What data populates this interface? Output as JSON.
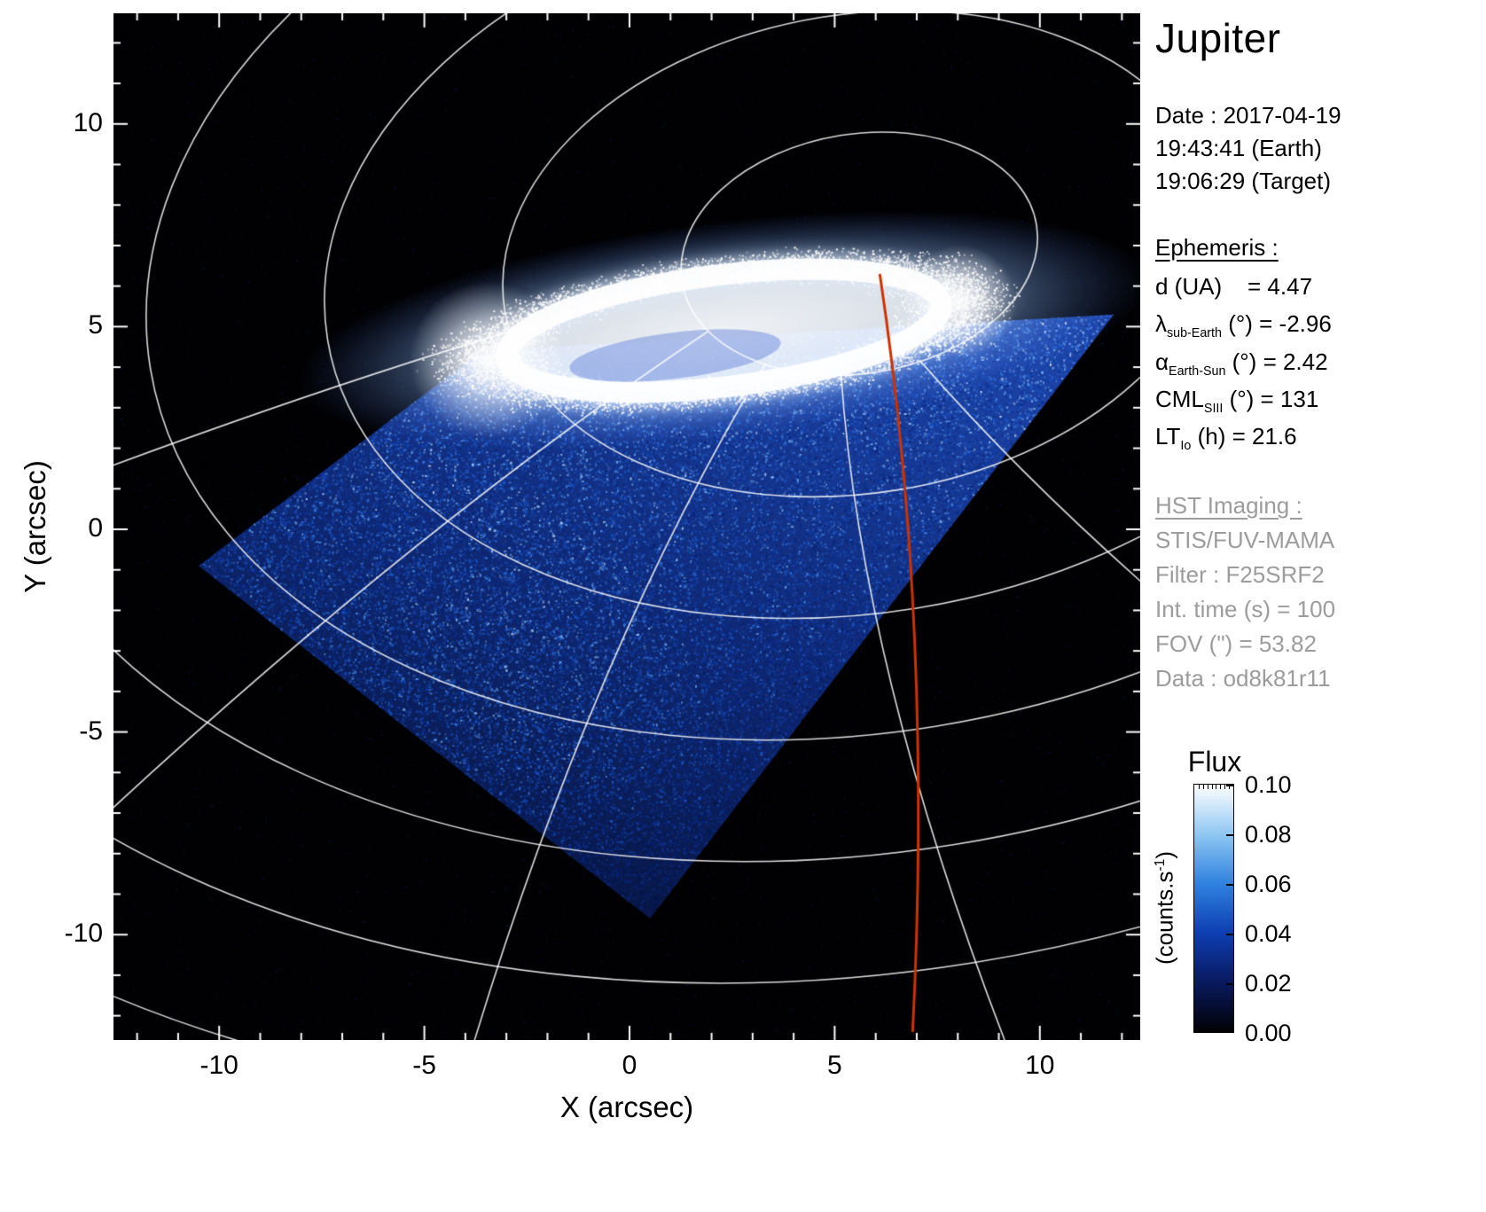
{
  "title": "Jupiter",
  "observation": {
    "date": "Date : 2017-04-19",
    "time_earth": "19:43:41 (Earth)",
    "time_target": "19:06:29 (Target)"
  },
  "ephemeris": {
    "heading": "Ephemeris : ",
    "rows": [
      {
        "main": "d (UA)",
        "sub": "",
        "rest": "    = 4.47"
      },
      {
        "main": "λ",
        "sub": "sub-Earth",
        "rest": " (°) = -2.96"
      },
      {
        "main": "α",
        "sub": "Earth-Sun",
        "rest": " (°) = 2.42"
      },
      {
        "main": "CML",
        "sub": "SIII",
        "rest": " (°) = 131"
      },
      {
        "main": "LT",
        "sub": "Io",
        "rest": " (h) = 21.6"
      }
    ]
  },
  "hst": {
    "heading": "HST Imaging : ",
    "lines": [
      "STIS/FUV-MAMA",
      "Filter : F25SRF2",
      "Int. time (s) = 100",
      "FOV (\") = 53.82",
      "Data : od8k81r11"
    ]
  },
  "colorbar": {
    "title": "Flux",
    "unit_pre": "(counts.s",
    "unit_sup": "-1",
    "unit_post": ")",
    "tick_labels": [
      "0.10",
      "0.08",
      "0.06",
      "0.04",
      "0.02",
      "0.00"
    ],
    "colors": [
      "#010104",
      "#09195e",
      "#0d3eb2",
      "#2f82e0",
      "#8fc7f2",
      "#ffffff"
    ]
  },
  "chart_data": {
    "type": "heatmap",
    "title": "Jupiter FUV auroral image (HST/STIS)",
    "xlabel": "X (arcsec)",
    "ylabel": "Y (arcsec)",
    "xlim": [
      -12.6,
      12.5
    ],
    "ylim": [
      -12.6,
      12.7
    ],
    "xticks": [
      -10,
      -5,
      0,
      5,
      10
    ],
    "yticks": [
      10,
      5,
      0,
      -5,
      -10
    ],
    "grid": "planetary latitude-longitude grid overlaid in white",
    "colorbar_label": "Flux (counts.s-1)",
    "colorbar_range": [
      0.0,
      0.1
    ],
    "colorbar_ticks": [
      0.0,
      0.02,
      0.04,
      0.06,
      0.08,
      0.1
    ],
    "features": {
      "background": "black sky, sparse faint blue noise",
      "auroral_oval": {
        "center_arcsec": [
          2.3,
          4.9
        ],
        "rx_arcsec": 5.8,
        "ry_arcsec": 1.5,
        "tilt_deg": -7,
        "peak_flux": 0.1
      },
      "detector_fov_arcsec": [
        [
          -3.6,
          4.4
        ],
        [
          11.8,
          5.3
        ],
        [
          0.5,
          -9.6
        ],
        [
          -10.5,
          -0.9
        ]
      ],
      "disk_flux_range": [
        0.01,
        0.06
      ],
      "red_meridian": {
        "from": [
          6.1,
          6.3
        ],
        "ctrl": [
          7.4,
          -2.5
        ],
        "to": [
          6.9,
          -12.4
        ],
        "color": "#cc3300"
      },
      "grid_pole_arcsec": [
        5.6,
        6.8
      ]
    }
  }
}
